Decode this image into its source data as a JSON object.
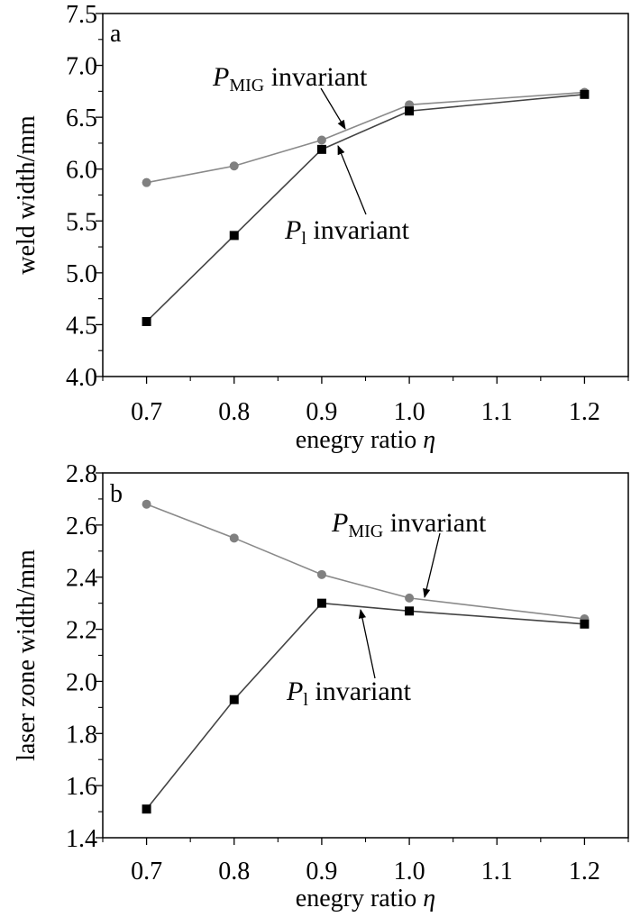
{
  "colors": {
    "series_mig": "#808080",
    "series_p1": "#000000",
    "axis": "#000000"
  },
  "chart_data": [
    {
      "type": "line",
      "panel": "a",
      "xlabel": "enegry ratio",
      "xlabel_symbol": "η",
      "ylabel": "weld width/mm",
      "xlim": [
        0.65,
        1.25
      ],
      "ylim": [
        4.0,
        7.5
      ],
      "xticks": [
        "0.7",
        "0.8",
        "0.9",
        "1.0",
        "1.1",
        "1.2"
      ],
      "yticks": [
        "4.0",
        "4.5",
        "5.0",
        "5.5",
        "6.0",
        "6.5",
        "7.0",
        "7.5"
      ],
      "grid": false,
      "x": [
        0.7,
        0.8,
        0.9,
        1.0,
        1.2
      ],
      "series": [
        {
          "name": "P_MIG invariant",
          "marker": "circle",
          "values": [
            5.87,
            6.03,
            6.28,
            6.62,
            6.74
          ]
        },
        {
          "name": "P_l invariant",
          "marker": "square",
          "values": [
            4.53,
            5.36,
            6.19,
            6.56,
            6.72
          ]
        }
      ],
      "annotations": [
        {
          "main": "P",
          "sub": "MIG",
          "rest": " invariant"
        },
        {
          "main": "P",
          "sub": "l",
          "rest": " invariant"
        }
      ]
    },
    {
      "type": "line",
      "panel": "b",
      "xlabel": "enegry ratio",
      "xlabel_symbol": "η",
      "ylabel": "laser zone width/mm",
      "xlim": [
        0.65,
        1.25
      ],
      "ylim": [
        1.4,
        2.8
      ],
      "xticks": [
        "0.7",
        "0.8",
        "0.9",
        "1.0",
        "1.1",
        "1.2"
      ],
      "yticks": [
        "1.4",
        "1.6",
        "1.8",
        "2.0",
        "2.2",
        "2.4",
        "2.6",
        "2.8"
      ],
      "grid": false,
      "x": [
        0.7,
        0.8,
        0.9,
        1.0,
        1.2
      ],
      "series": [
        {
          "name": "P_MIG invariant",
          "marker": "circle",
          "values": [
            2.68,
            2.55,
            2.41,
            2.32,
            2.24
          ]
        },
        {
          "name": "P_l invariant",
          "marker": "square",
          "values": [
            1.51,
            1.93,
            2.3,
            2.27,
            2.22
          ]
        }
      ],
      "annotations": [
        {
          "main": "P",
          "sub": "MIG",
          "rest": " invariant"
        },
        {
          "main": "P",
          "sub": "l",
          "rest": " invariant"
        }
      ]
    }
  ]
}
